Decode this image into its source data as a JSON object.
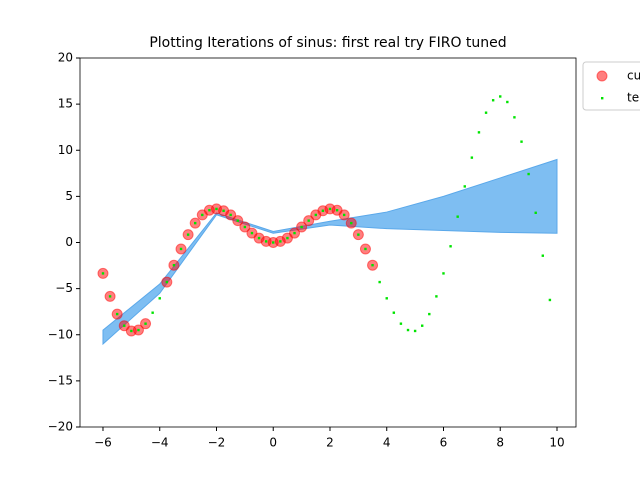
{
  "chart_data": {
    "type": "scatter",
    "title": "Plotting Iterations of sinus: first real try FIRO tuned",
    "xlim": [
      -6.81,
      10.67
    ],
    "ylim": [
      -20,
      20
    ],
    "xticks": [
      {
        "value": -6,
        "label": "−6"
      },
      {
        "value": -4,
        "label": "−4"
      },
      {
        "value": -2,
        "label": "−2"
      },
      0,
      2,
      4,
      6,
      8,
      10
    ],
    "yticks": [
      {
        "value": -20,
        "label": "−20"
      },
      {
        "value": -15,
        "label": "−15"
      },
      {
        "value": -10,
        "label": "−10"
      },
      {
        "value": -5,
        "label": "−5"
      },
      0,
      5,
      10,
      15,
      20
    ],
    "grid": false,
    "legend": "outside upper right",
    "band": {
      "color": "#7ebef2",
      "edge": "#5aa8ea",
      "x": [
        -6,
        -4,
        -2,
        0,
        2,
        4,
        6,
        8,
        10
      ],
      "lower": [
        -11,
        -5.5,
        3,
        1,
        1.9,
        1.5,
        1.3,
        1.1,
        1
      ],
      "upper": [
        -9.5,
        -4.5,
        3.2,
        1.2,
        2.3,
        3.3,
        5,
        7,
        9
      ]
    },
    "series": [
      {
        "name": "cu",
        "color": "#ff0000",
        "marker": "circle",
        "x": [
          -6,
          -5.75,
          -5.5,
          -5.25,
          -5,
          -4.75,
          -4.5,
          -3.75,
          -3.5,
          -3.25,
          -3,
          -2.75,
          -2.5,
          -2.25,
          -2,
          -1.75,
          -1.5,
          -1.25,
          -1,
          -0.75,
          -0.5,
          -0.25,
          0,
          0.25,
          0.5,
          0.75,
          1,
          1.25,
          1.5,
          1.75,
          2,
          2.25,
          2.5,
          2.75,
          3,
          3.25,
          3.5
        ],
        "values": [
          -3.35,
          -5.84,
          -7.76,
          -9.02,
          -9.59,
          -9.49,
          -8.8,
          -4.29,
          -2.46,
          -0.7,
          0.85,
          2.1,
          2.99,
          3.5,
          3.64,
          3.44,
          2.99,
          2.37,
          1.68,
          1.02,
          0.48,
          0.12,
          0,
          0.12,
          0.48,
          1.02,
          1.68,
          2.37,
          2.99,
          3.44,
          3.64,
          3.5,
          2.99,
          2.1,
          0.85,
          -0.7,
          -2.46
        ]
      },
      {
        "name": "te",
        "color": "#00e400",
        "marker": "dot",
        "x": [
          -6,
          -5.75,
          -5.5,
          -5.25,
          -5,
          -4.75,
          -4.5,
          -4.25,
          -4,
          -3.75,
          -3.5,
          -3.25,
          -3,
          -2.75,
          -2.5,
          -2.25,
          -2,
          -1.75,
          -1.5,
          -1.25,
          -1,
          -0.75,
          -0.5,
          -0.25,
          0,
          0.25,
          0.5,
          0.75,
          1,
          1.25,
          1.5,
          1.75,
          2,
          2.25,
          2.5,
          2.75,
          3,
          3.25,
          3.5,
          3.75,
          4,
          4.25,
          4.5,
          4.75,
          5,
          5.25,
          5.5,
          5.75,
          6,
          6.25,
          6.5,
          6.75,
          7,
          7.25,
          7.5,
          7.75,
          8,
          8.25,
          8.5,
          8.75,
          9,
          9.25,
          9.5,
          9.75
        ],
        "values": [
          -3.35,
          -5.84,
          -7.76,
          -9.02,
          -9.59,
          -9.49,
          -8.8,
          -7.61,
          -6.05,
          -4.29,
          -2.46,
          -0.7,
          0.85,
          2.1,
          2.99,
          3.5,
          3.64,
          3.44,
          2.99,
          2.37,
          1.68,
          1.02,
          0.48,
          0.12,
          0,
          0.12,
          0.48,
          1.02,
          1.68,
          2.37,
          2.99,
          3.44,
          3.64,
          3.5,
          2.99,
          2.1,
          0.85,
          -0.7,
          -2.46,
          -4.29,
          -6.05,
          -7.61,
          -8.8,
          -9.49,
          -9.59,
          -9.02,
          -7.76,
          -5.84,
          -3.35,
          -0.41,
          2.8,
          6.08,
          9.2,
          11.94,
          14.07,
          15.42,
          15.83,
          15.23,
          13.57,
          10.93,
          7.42,
          3.22,
          -1.43,
          -6.23
        ]
      }
    ]
  }
}
